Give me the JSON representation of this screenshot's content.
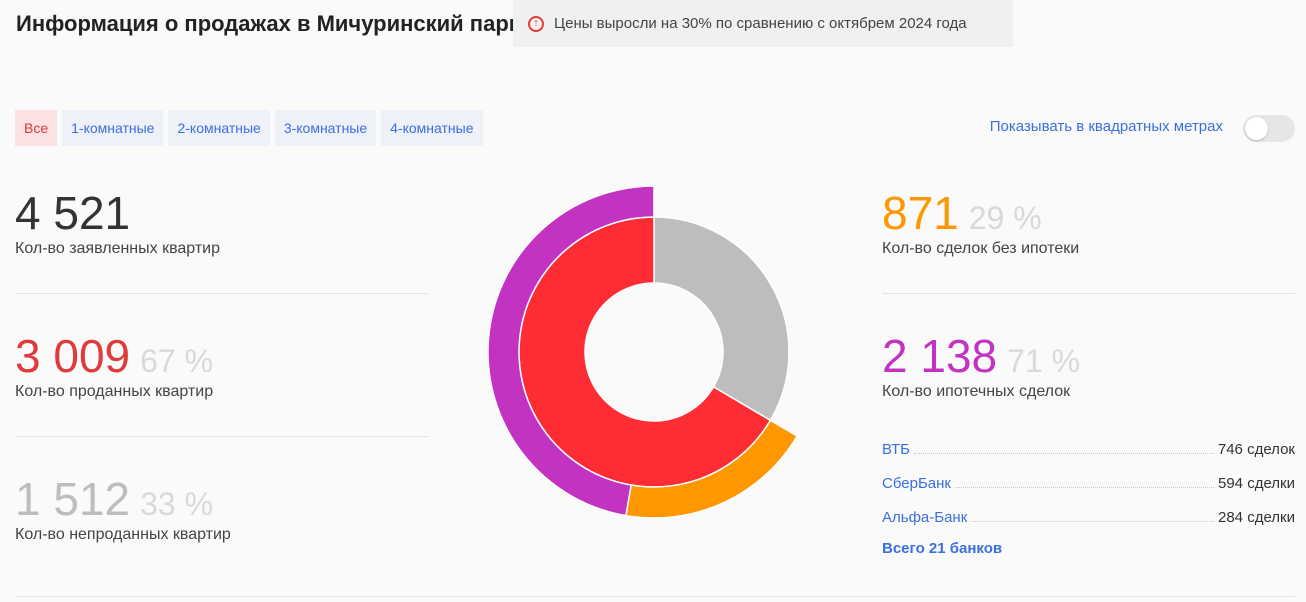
{
  "header": {
    "title": "Информация о продажах в Мичуринский парк",
    "notice_icon": "arrow-up-circle-icon",
    "notice_text": "Цены выросли на 30% по сравнению с октябрем 2024 года"
  },
  "filters": [
    {
      "label": "Все",
      "active": true
    },
    {
      "label": "1-комнатные",
      "active": false
    },
    {
      "label": "2-комнатные",
      "active": false
    },
    {
      "label": "3-комнатные",
      "active": false
    },
    {
      "label": "4-комнатные",
      "active": false
    }
  ],
  "toggle": {
    "label": "Показывать в квадратных метрах",
    "on": false
  },
  "left_stats": {
    "declared": {
      "value": "4 521",
      "label": "Кол-во заявленных квартир"
    },
    "sold": {
      "value": "3 009",
      "percent": "67 %",
      "label": "Кол-во проданных квартир"
    },
    "unsold": {
      "value": "1 512",
      "percent": "33 %",
      "label": "Кол-во непроданных квартир"
    }
  },
  "right_stats": {
    "no_mortgage": {
      "value": "871",
      "percent": "29 %",
      "label": "Кол-во сделок без ипотеки"
    },
    "mortgage": {
      "value": "2 138",
      "percent": "71 %",
      "label": "Кол-во ипотечных сделок"
    }
  },
  "banks": [
    {
      "name": "ВТБ",
      "count": "746 сделок"
    },
    {
      "name": "СберБанк",
      "count": "594 сделки"
    },
    {
      "name": "Альфа-Банк",
      "count": "284 сделки"
    }
  ],
  "banks_total": "Всего 21 банков",
  "colors": {
    "sold": "#fe2c33",
    "unsold": "#bdbdbd",
    "mortgage": "#c233c2",
    "no_mortgage": "#fe9700",
    "declared_text": "#333333",
    "sold_text": "#e03a3a",
    "unsold_text": "#bdbdbd",
    "no_mortgage_text": "#fe9700",
    "mortgage_text": "#c233c2",
    "link": "#3b6ee0"
  },
  "chart_data": {
    "type": "pie",
    "inner_ring": [
      {
        "value": 3009
      },
      {
        "value": 1512
      }
    ],
    "outer_ring": [
      {
        "value": 2138
      },
      {
        "value": 871
      }
    ]
  }
}
